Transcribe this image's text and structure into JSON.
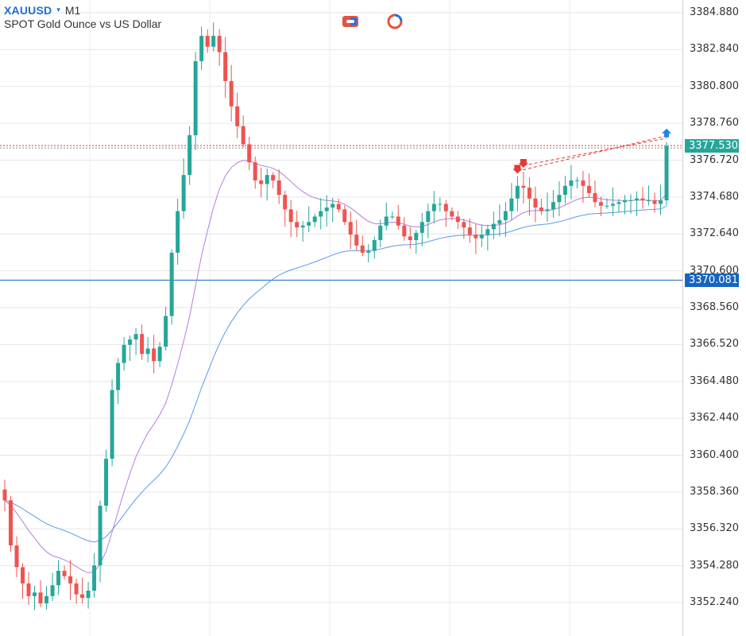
{
  "header": {
    "symbol": "XAUUSD",
    "caret": "▾",
    "timeframe": "M1",
    "description": "SPOT Gold Ounce vs US Dollar"
  },
  "toolbar": {
    "icons": [
      "trade-panel-icon",
      "indicator-cycle-icon"
    ]
  },
  "price_scale": {
    "ticks": [
      "3384.880",
      "3382.840",
      "3380.800",
      "3378.760",
      "3376.720",
      "3374.680",
      "3372.640",
      "3370.600",
      "3368.560",
      "3366.520",
      "3364.480",
      "3362.440",
      "3360.400",
      "3358.360",
      "3356.320",
      "3354.280",
      "3352.240"
    ],
    "current_bid": "3377.530",
    "horizontal_level": "3370.081"
  },
  "colors": {
    "bull": "#26a69a",
    "bear": "#ef5350",
    "ma_fast": "#b57de0",
    "ma_slow": "#5b9be6",
    "level_line": "#1565c0",
    "bid_tag": "#26a69a",
    "level_tag": "#1565c0",
    "signal_sell": "#e53935",
    "signal_buy": "#1e88e5"
  },
  "chart_data": {
    "type": "candlestick",
    "symbol": "XAUUSD",
    "timeframe": "M1",
    "ylim": [
      3350.9,
      3385.8
    ],
    "closes": [
      3357.9,
      3355.4,
      3354.2,
      3353.3,
      3352.6,
      3352.8,
      3352.2,
      3352.6,
      3353.2,
      3354.0,
      3353.7,
      3353.3,
      3352.7,
      3352.5,
      3352.9,
      3354.3,
      3357.6,
      3360.2,
      3364.0,
      3365.5,
      3366.5,
      3366.8,
      3367.1,
      3366.0,
      3366.3,
      3365.6,
      3366.4,
      3368.1,
      3371.6,
      3373.9,
      3375.9,
      3378.1,
      3382.2,
      3383.6,
      3383.0,
      3383.6,
      3382.7,
      3381.1,
      3379.7,
      3378.6,
      3377.6,
      3376.6,
      3375.6,
      3375.4,
      3375.9,
      3375.6,
      3374.8,
      3374.0,
      3373.3,
      3373.0,
      3373.1,
      3373.3,
      3373.6,
      3373.9,
      3374.1,
      3374.3,
      3374.0,
      3373.3,
      3372.6,
      3372.0,
      3371.6,
      3371.7,
      3372.3,
      3373.1,
      3373.6,
      3373.6,
      3373.1,
      3372.5,
      3372.3,
      3372.7,
      3373.3,
      3373.9,
      3374.3,
      3374.3,
      3373.9,
      3373.6,
      3373.3,
      3373.0,
      3372.6,
      3372.4,
      3372.6,
      3372.9,
      3373.2,
      3373.4,
      3373.9,
      3374.6,
      3375.3,
      3375.2,
      3374.6,
      3374.1,
      3373.9,
      3374.0,
      3374.4,
      3374.8,
      3375.3,
      3375.6,
      3375.6,
      3375.3,
      3374.9,
      3374.4,
      3374.2,
      3374.2,
      3374.3,
      3374.4,
      3374.5,
      3374.5,
      3374.6,
      3374.5,
      3374.5,
      3374.3,
      3374.5,
      3377.5
    ]
  }
}
